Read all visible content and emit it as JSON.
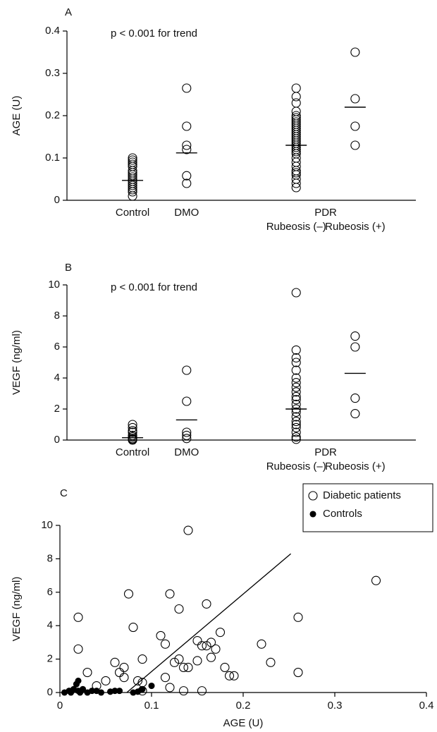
{
  "chart_data": [
    {
      "type": "strip",
      "panel_label": "A",
      "annotation": "p < 0.001 for trend",
      "ylabel": "AGE (U)",
      "categories": [
        "Control",
        "DMO",
        "Rubeosis (–)",
        "Rubeosis (+)"
      ],
      "group_label": "PDR",
      "values": [
        [
          0.1,
          0.095,
          0.09,
          0.085,
          0.08,
          0.07,
          0.065,
          0.06,
          0.055,
          0.05,
          0.045,
          0.04,
          0.035,
          0.03,
          0.025,
          0.02,
          0.01
        ],
        [
          0.265,
          0.175,
          0.13,
          0.12,
          0.058,
          0.04
        ],
        [
          0.265,
          0.245,
          0.23,
          0.21,
          0.2,
          0.195,
          0.19,
          0.185,
          0.18,
          0.175,
          0.17,
          0.165,
          0.16,
          0.155,
          0.15,
          0.145,
          0.14,
          0.135,
          0.13,
          0.125,
          0.12,
          0.115,
          0.11,
          0.1,
          0.09,
          0.08,
          0.07,
          0.065,
          0.06,
          0.05,
          0.04,
          0.03
        ],
        [
          0.35,
          0.24,
          0.175,
          0.13
        ]
      ],
      "means": [
        0.047,
        0.112,
        0.13,
        0.22
      ],
      "ylim": [
        0,
        0.4
      ],
      "yticks": [
        0,
        0.1,
        0.2,
        0.3,
        0.4
      ],
      "color": "#000000"
    },
    {
      "type": "strip",
      "panel_label": "B",
      "annotation": "p < 0.001 for trend",
      "ylabel": "VEGF (ng/ml)",
      "categories": [
        "Control",
        "DMO",
        "Rubeosis (–)",
        "Rubeosis (+)"
      ],
      "group_label": "PDR",
      "values": [
        [
          1.0,
          0.8,
          0.6,
          0.5,
          0.3,
          0.2,
          0.1,
          0.05,
          0
        ],
        [
          4.5,
          2.5,
          0.5,
          0.3,
          0.1
        ],
        [
          9.5,
          5.8,
          5.3,
          5.0,
          4.5,
          4.0,
          3.7,
          3.4,
          3.1,
          2.8,
          2.6,
          2.3,
          2.0,
          1.8,
          1.5,
          1.2,
          1.0,
          0.8,
          0.5,
          0.2,
          0.05
        ],
        [
          6.7,
          6.0,
          2.7,
          1.7
        ]
      ],
      "means": [
        0.15,
        1.3,
        2.0,
        4.3
      ],
      "ylim": [
        0,
        10
      ],
      "yticks": [
        0,
        2,
        4,
        6,
        8,
        10
      ],
      "color": "#000000"
    },
    {
      "type": "scatter",
      "panel_label": "C",
      "xlabel": "AGE (U)",
      "ylabel": "VEGF (ng/ml)",
      "legend": "upper right",
      "series": [
        {
          "name": "Diabetic patients",
          "marker": "open",
          "color": "#000000",
          "x": [
            0.02,
            0.02,
            0.03,
            0.04,
            0.05,
            0.06,
            0.065,
            0.07,
            0.07,
            0.075,
            0.08,
            0.085,
            0.09,
            0.09,
            0.09,
            0.11,
            0.115,
            0.115,
            0.12,
            0.12,
            0.125,
            0.13,
            0.13,
            0.135,
            0.135,
            0.14,
            0.14,
            0.15,
            0.15,
            0.155,
            0.155,
            0.16,
            0.16,
            0.165,
            0.165,
            0.17,
            0.175,
            0.18,
            0.185,
            0.19,
            0.22,
            0.23,
            0.26,
            0.26,
            0.345
          ],
          "values": [
            4.5,
            2.6,
            1.2,
            0.4,
            0.7,
            1.8,
            1.2,
            0.9,
            1.5,
            5.9,
            3.9,
            0.7,
            2.0,
            0.6,
            0.1,
            3.4,
            2.9,
            0.9,
            5.9,
            0.3,
            1.8,
            5.0,
            2.0,
            1.5,
            0.1,
            9.7,
            1.5,
            3.1,
            1.9,
            2.8,
            0.1,
            5.3,
            2.8,
            3.0,
            2.1,
            2.6,
            3.6,
            1.5,
            1.0,
            1.0,
            2.9,
            1.8,
            4.5,
            1.2,
            6.7
          ]
        },
        {
          "name": "Controls",
          "marker": "filled",
          "color": "#000000",
          "x": [
            0.005,
            0.01,
            0.012,
            0.015,
            0.018,
            0.02,
            0.02,
            0.022,
            0.025,
            0.03,
            0.035,
            0.04,
            0.045,
            0.055,
            0.06,
            0.065,
            0.08,
            0.085,
            0.09,
            0.1
          ],
          "values": [
            0,
            0.1,
            0,
            0.2,
            0.5,
            0.7,
            0.1,
            0,
            0.2,
            0,
            0.1,
            0.1,
            0,
            0.05,
            0.1,
            0.1,
            0,
            0.05,
            0.2,
            0.4
          ]
        }
      ],
      "trend_line": {
        "x": [
          0.073,
          0.252
        ],
        "y": [
          0,
          8.3
        ]
      },
      "xlim": [
        0,
        0.4
      ],
      "xticks": [
        0,
        0.1,
        0.2,
        0.3,
        0.4
      ],
      "ylim": [
        0,
        10
      ],
      "yticks": [
        0,
        2,
        4,
        6,
        8,
        10
      ]
    }
  ]
}
